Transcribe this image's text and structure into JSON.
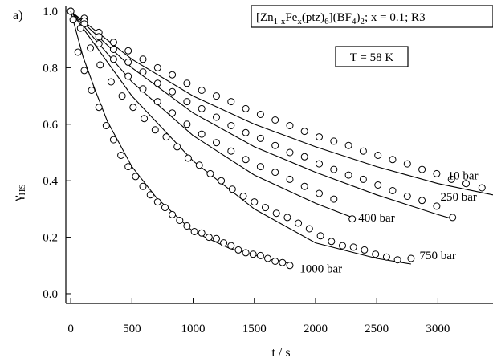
{
  "chart_data": {
    "type": "scatter",
    "panel_label": "a)",
    "title_box": {
      "parts": [
        "[Zn",
        "1-x",
        "Fe",
        "x",
        "(ptz)",
        "6",
        "](BF",
        "4",
        ")",
        "2",
        "; x = 0.1; R3"
      ]
    },
    "temperature_box": "T = 58 K",
    "xlabel": "t / s",
    "ylabel": {
      "main": "γ",
      "sub": "HS"
    },
    "xlim": [
      -40,
      3450
    ],
    "ylim": [
      -0.02,
      1.0
    ],
    "xticks": [
      0,
      500,
      1000,
      1500,
      2000,
      2500,
      3000
    ],
    "yticks": [
      0.0,
      0.2,
      0.4,
      0.6,
      0.8,
      1.0
    ],
    "ytick_labels": [
      "0.0",
      "0.2",
      "0.4",
      "0.6",
      "0.8",
      "1.0"
    ],
    "grid": false,
    "series": [
      {
        "name": "10 bar",
        "label_at": [
          3080,
          0.405
        ],
        "fit": [
          [
            0,
            1.0
          ],
          [
            500,
            0.83
          ],
          [
            1000,
            0.7
          ],
          [
            1500,
            0.6
          ],
          [
            2000,
            0.52
          ],
          [
            2500,
            0.45
          ],
          [
            3000,
            0.39
          ],
          [
            3450,
            0.35
          ]
        ],
        "x": [
          0,
          110,
          230,
          350,
          470,
          590,
          710,
          830,
          950,
          1070,
          1190,
          1310,
          1430,
          1550,
          1670,
          1790,
          1910,
          2030,
          2150,
          2270,
          2390,
          2510,
          2630,
          2750,
          2870,
          2990,
          3110,
          3230,
          3360
        ],
        "y": [
          1.0,
          0.975,
          0.925,
          0.89,
          0.86,
          0.83,
          0.8,
          0.775,
          0.745,
          0.72,
          0.7,
          0.68,
          0.655,
          0.635,
          0.615,
          0.595,
          0.575,
          0.555,
          0.54,
          0.525,
          0.505,
          0.49,
          0.475,
          0.46,
          0.44,
          0.425,
          0.405,
          0.39,
          0.375
        ]
      },
      {
        "name": "250 bar",
        "label_at": [
          3020,
          0.33
        ],
        "fit": [
          [
            0,
            1.0
          ],
          [
            500,
            0.8
          ],
          [
            1000,
            0.64
          ],
          [
            1500,
            0.52
          ],
          [
            2000,
            0.43
          ],
          [
            2500,
            0.35
          ],
          [
            3000,
            0.28
          ],
          [
            3120,
            0.265
          ]
        ],
        "x": [
          0,
          110,
          230,
          350,
          470,
          590,
          710,
          830,
          950,
          1070,
          1190,
          1310,
          1430,
          1550,
          1670,
          1790,
          1910,
          2030,
          2150,
          2270,
          2390,
          2510,
          2630,
          2750,
          2870,
          2990,
          3120
        ],
        "y": [
          1.0,
          0.965,
          0.91,
          0.865,
          0.82,
          0.785,
          0.745,
          0.715,
          0.68,
          0.655,
          0.625,
          0.595,
          0.57,
          0.55,
          0.525,
          0.5,
          0.485,
          0.46,
          0.44,
          0.42,
          0.405,
          0.385,
          0.365,
          0.345,
          0.33,
          0.31,
          0.27
        ]
      },
      {
        "name": "400 bar",
        "label_at": [
          2350,
          0.255
        ],
        "fit": [
          [
            0,
            1.0
          ],
          [
            500,
            0.75
          ],
          [
            1000,
            0.56
          ],
          [
            1500,
            0.42
          ],
          [
            2000,
            0.32
          ],
          [
            2300,
            0.27
          ]
        ],
        "x": [
          0,
          110,
          230,
          350,
          470,
          590,
          710,
          830,
          950,
          1070,
          1190,
          1310,
          1430,
          1550,
          1670,
          1790,
          1910,
          2030,
          2150,
          2300
        ],
        "y": [
          1.0,
          0.955,
          0.885,
          0.83,
          0.77,
          0.725,
          0.68,
          0.64,
          0.6,
          0.565,
          0.535,
          0.505,
          0.475,
          0.45,
          0.43,
          0.405,
          0.38,
          0.355,
          0.335,
          0.265
        ]
      },
      {
        "name": "750 bar",
        "label_at": [
          2850,
          0.122
        ],
        "fit": [
          [
            0,
            1.0
          ],
          [
            250,
            0.85
          ],
          [
            500,
            0.7
          ],
          [
            1000,
            0.47
          ],
          [
            1500,
            0.3
          ],
          [
            2000,
            0.18
          ],
          [
            2500,
            0.125
          ],
          [
            2780,
            0.105
          ]
        ],
        "x": [
          0,
          80,
          160,
          240,
          330,
          420,
          510,
          600,
          690,
          780,
          870,
          960,
          1050,
          1140,
          1230,
          1320,
          1410,
          1500,
          1590,
          1680,
          1770,
          1860,
          1950,
          2040,
          2130,
          2220,
          2310,
          2400,
          2490,
          2580,
          2670,
          2780
        ],
        "y": [
          1.0,
          0.94,
          0.87,
          0.81,
          0.75,
          0.7,
          0.66,
          0.62,
          0.58,
          0.555,
          0.52,
          0.48,
          0.455,
          0.425,
          0.4,
          0.37,
          0.345,
          0.325,
          0.305,
          0.285,
          0.27,
          0.25,
          0.23,
          0.205,
          0.185,
          0.17,
          0.165,
          0.155,
          0.14,
          0.13,
          0.12,
          0.125
        ]
      },
      {
        "name": "1000 bar",
        "label_at": [
          1870,
          0.075
        ],
        "fit": [
          [
            0,
            1.0
          ],
          [
            100,
            0.84
          ],
          [
            200,
            0.72
          ],
          [
            300,
            0.61
          ],
          [
            500,
            0.45
          ],
          [
            700,
            0.34
          ],
          [
            1000,
            0.22
          ],
          [
            1300,
            0.16
          ],
          [
            1600,
            0.125
          ],
          [
            1800,
            0.105
          ]
        ],
        "x": [
          20,
          60,
          110,
          170,
          230,
          290,
          350,
          410,
          470,
          530,
          590,
          650,
          710,
          770,
          830,
          890,
          950,
          1010,
          1070,
          1130,
          1190,
          1250,
          1310,
          1370,
          1430,
          1490,
          1550,
          1610,
          1670,
          1730,
          1790
        ],
        "y": [
          0.97,
          0.855,
          0.79,
          0.72,
          0.66,
          0.595,
          0.545,
          0.49,
          0.45,
          0.415,
          0.38,
          0.35,
          0.325,
          0.305,
          0.28,
          0.26,
          0.24,
          0.22,
          0.215,
          0.2,
          0.195,
          0.18,
          0.17,
          0.155,
          0.145,
          0.14,
          0.135,
          0.125,
          0.115,
          0.11,
          0.1
        ]
      }
    ]
  }
}
